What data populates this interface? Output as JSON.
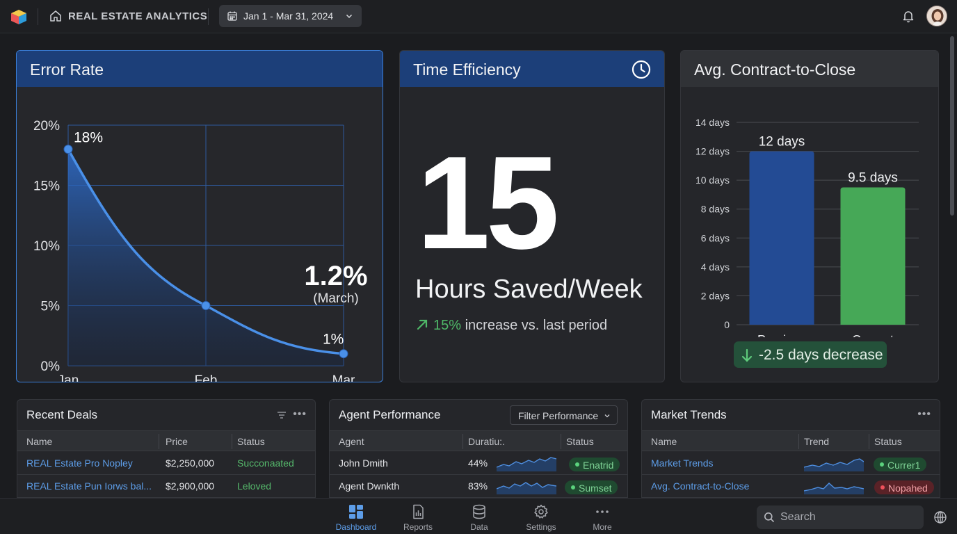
{
  "header": {
    "app_title": "REAL ESTATE ANALYTICS",
    "date_range": "Jan 1 - Mar 31, 2024",
    "icons": [
      "app-logo-icon",
      "home-icon",
      "calendar-icon",
      "chevron-down-icon",
      "bell-icon",
      "avatar"
    ]
  },
  "error_rate": {
    "title": "Error Rate",
    "callout_value": "1.2%",
    "callout_note": "(March)"
  },
  "time_efficiency": {
    "title": "Time Efficiency",
    "big_number": "15",
    "label": "Hours Saved/Week",
    "increase_pct": "15%",
    "increase_text": "increase vs. last period"
  },
  "contract_close": {
    "title": "Avg. Contract-to-Close",
    "decrease": "-2.5 days decrease"
  },
  "chart_data": [
    {
      "type": "area",
      "title": "Error Rate",
      "categories": [
        "Jan",
        "Feb",
        "Mar"
      ],
      "values": [
        18,
        5,
        1
      ],
      "point_labels": [
        "18%",
        "",
        "1%"
      ],
      "yticks": [
        "0%",
        "5%",
        "10%",
        "15%",
        "20%"
      ],
      "ylim": [
        0,
        20
      ],
      "grid": true,
      "color": "#4a90e8"
    },
    {
      "type": "bar",
      "title": "Avg. Contract-to-Close",
      "categories": [
        "Previous",
        "Current"
      ],
      "values": [
        12,
        9.5
      ],
      "value_labels": [
        "12 days",
        "9.5 days"
      ],
      "yticks": [
        "0",
        "2 days",
        "4 days",
        "6 days",
        "8 days",
        "10 days",
        "12 days",
        "14 days"
      ],
      "ylim": [
        0,
        14
      ],
      "grid": true,
      "colors": [
        "#234b94",
        "#46a857"
      ]
    }
  ],
  "recent_deals": {
    "title": "Recent Deals",
    "columns": [
      "Name",
      "Price",
      "Status"
    ],
    "rows": [
      {
        "name": "REAL Estate Pro Nopley",
        "price": "$2,250,000",
        "status": "Succonaated"
      },
      {
        "name": "REAL Estate Pun Iorws bal...",
        "price": "$2,900,000",
        "status": "Leloved"
      }
    ]
  },
  "agent_performance": {
    "title": "Agent Performance",
    "filter_label": "Filter Performance",
    "columns": [
      "Agent",
      "Duratiu:.",
      "Status"
    ],
    "rows": [
      {
        "agent": "John Dmith",
        "duration": "44%",
        "status": "Enatrid"
      },
      {
        "agent": "Agent Dwnkth",
        "duration": "83%",
        "status": "Sumset"
      }
    ]
  },
  "market_trends": {
    "title": "Market Trends",
    "columns": [
      "Name",
      "Trend",
      "Status"
    ],
    "rows": [
      {
        "name": "Market Trends",
        "status": "Currer1"
      },
      {
        "name": "Avg. Contract-to-Close",
        "status": "Nopahed"
      }
    ]
  },
  "bottom_nav": {
    "items": [
      {
        "label": "Dashboard",
        "icon": "dashboard-icon"
      },
      {
        "label": "Reports",
        "icon": "reports-icon"
      },
      {
        "label": "Data",
        "icon": "database-icon"
      },
      {
        "label": "Settings",
        "icon": "gear-icon"
      },
      {
        "label": "More",
        "icon": "more-dots-icon"
      }
    ],
    "search_placeholder": "Search"
  },
  "colors": {
    "accent_blue": "#4a90e8",
    "header_blue": "#1c3f79",
    "positive_green": "#4fb868",
    "negative_red": "#f0515c"
  }
}
